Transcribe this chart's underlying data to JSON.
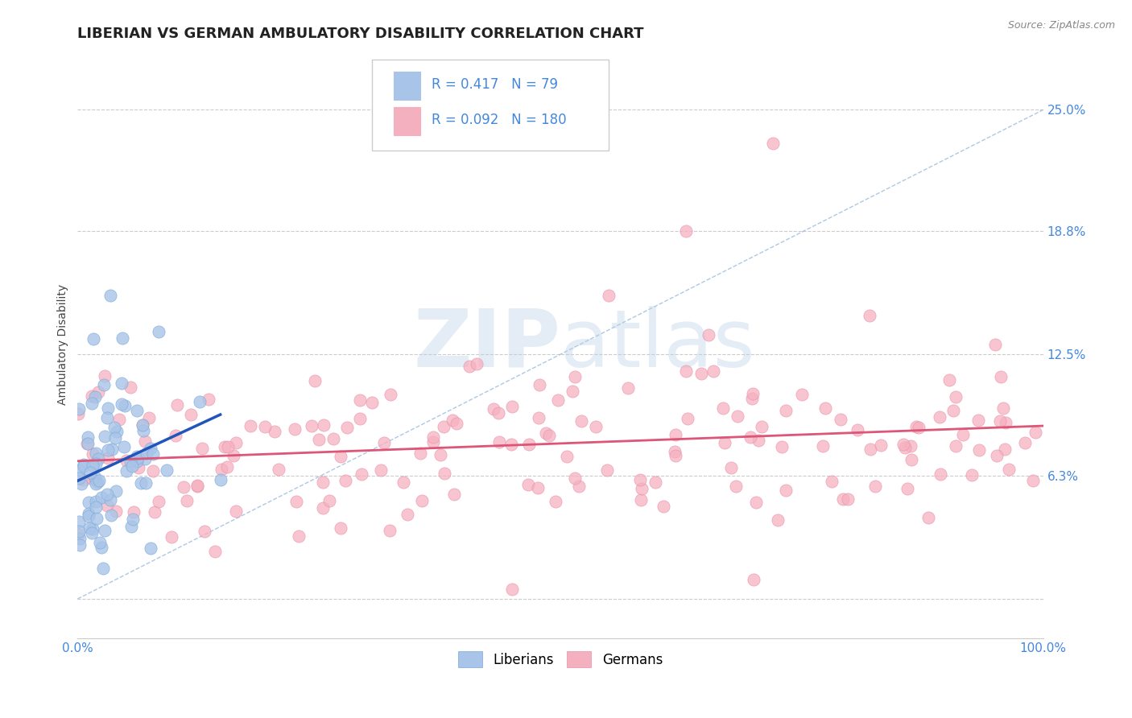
{
  "title": "LIBERIAN VS GERMAN AMBULATORY DISABILITY CORRELATION CHART",
  "source": "Source: ZipAtlas.com",
  "ylabel": "Ambulatory Disability",
  "xlim": [
    0.0,
    1.0
  ],
  "ylim": [
    -0.02,
    0.28
  ],
  "yticks": [
    0.0,
    0.063,
    0.125,
    0.188,
    0.25
  ],
  "ytick_labels": [
    "",
    "6.3%",
    "12.5%",
    "18.8%",
    "25.0%"
  ],
  "xticks": [
    0.0,
    1.0
  ],
  "xtick_labels": [
    "0.0%",
    "100.0%"
  ],
  "liberian_R": 0.417,
  "liberian_N": 79,
  "german_R": 0.092,
  "german_N": 180,
  "liberian_color": "#a8c4e8",
  "liberian_edge": "#7aaad8",
  "german_color": "#f5b0c0",
  "german_edge": "#e890a8",
  "liberian_trend_color": "#2255bb",
  "german_trend_color": "#dd5577",
  "background_color": "#ffffff",
  "grid_color": "#cccccc",
  "watermark_zip": "ZIP",
  "watermark_atlas": "atlas",
  "title_fontsize": 13,
  "axis_label_fontsize": 10,
  "tick_label_fontsize": 11,
  "source_fontsize": 9,
  "legend_fontsize": 12,
  "R_color": "#4488dd",
  "N_color": "#4488dd"
}
